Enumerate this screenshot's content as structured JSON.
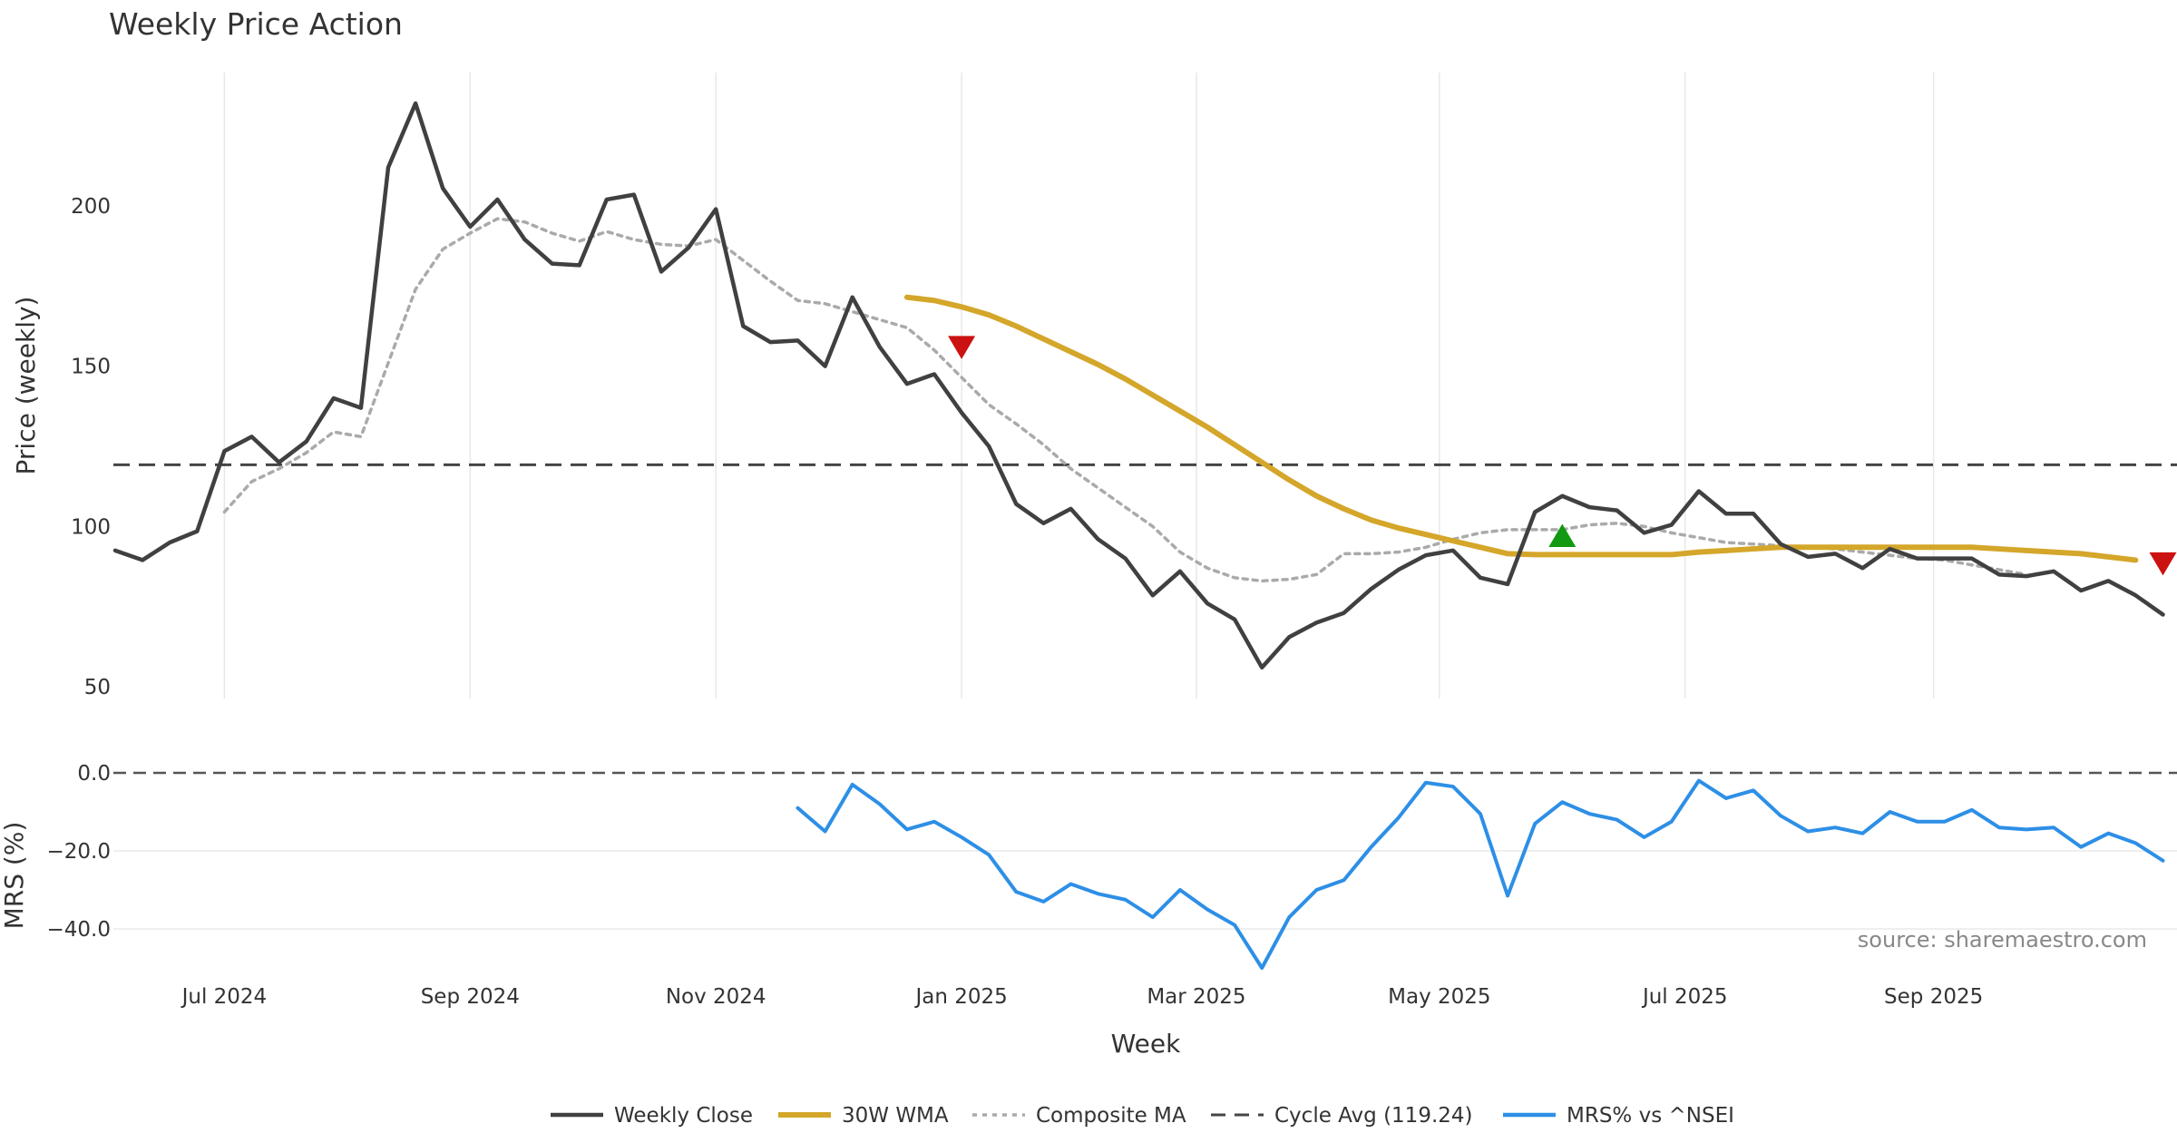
{
  "chart_data": [
    {
      "type": "line",
      "title": "Weekly Price Action",
      "ylabel": "Price (weekly)",
      "ylim": [
        42,
        238
      ],
      "yticks": [
        50,
        100,
        150,
        200
      ],
      "x_week_range": [
        0,
        78
      ],
      "series": [
        {
          "name": "Weekly Close",
          "color": "#404040",
          "start_week": 0,
          "values": [
            92.5,
            89.5,
            95,
            98.5,
            123.5,
            128,
            120,
            126.5,
            140,
            137,
            212,
            232,
            205.5,
            193.5,
            202,
            189.5,
            182,
            181.5,
            202,
            203.5,
            179.5,
            187,
            199,
            162.5,
            157.5,
            158,
            150,
            171.5,
            156,
            144.5,
            147.5,
            135.5,
            125,
            107,
            101,
            105.5,
            96,
            90,
            78.5,
            86,
            76,
            71,
            56,
            65.5,
            70,
            73,
            80.5,
            86.5,
            91,
            92.5,
            84,
            82,
            104.5,
            109.5,
            106,
            105,
            98,
            100.5,
            111,
            104,
            104,
            94.5,
            90.5,
            91.5,
            87,
            93,
            90,
            90,
            90,
            85,
            84.5,
            86,
            80,
            83,
            78.5,
            72.5
          ]
        },
        {
          "name": "30W WMA",
          "color": "#d4a62a",
          "start_week": 29,
          "values": [
            171.5,
            170.5,
            168.5,
            166,
            162.5,
            158.5,
            154.5,
            150.5,
            146,
            141,
            136,
            131,
            125.5,
            120,
            114.5,
            109.5,
            105.5,
            102,
            99.5,
            97.5,
            95.5,
            93.5,
            91.5,
            91.2,
            91.2,
            91.2,
            91.2,
            91.2,
            91.2,
            92,
            92.5,
            93,
            93.5,
            93.5,
            93.5,
            93.5,
            93.5,
            93.5,
            93.5,
            93.5,
            93,
            92.5,
            92,
            91.5,
            90.5,
            89.5
          ]
        },
        {
          "name": "Composite MA",
          "color": "#aaaaaa",
          "start_week": 4,
          "values": [
            104.5,
            114,
            118,
            123,
            129.5,
            128,
            151,
            174,
            186.5,
            191.5,
            196,
            195,
            191.5,
            189,
            192,
            189.5,
            188,
            187.5,
            189.5,
            183,
            176.5,
            170.5,
            169.5,
            167,
            164.5,
            162,
            155,
            146.5,
            138,
            132,
            125.5,
            118,
            112,
            106,
            100,
            92,
            87,
            84,
            83,
            83.5,
            85,
            91.5,
            91.5,
            92,
            93.5,
            96,
            98,
            99,
            99,
            99,
            100.5,
            101,
            100,
            98,
            96.5,
            95,
            94.5,
            94,
            93.5,
            93,
            92,
            91,
            90,
            89.5,
            88,
            86.5,
            85
          ]
        }
      ],
      "reference_line": {
        "name": "Cycle Avg (119.24)",
        "value": 119.24,
        "color": "#444444"
      },
      "signals": [
        {
          "type": "sell",
          "week": 31,
          "value": 157,
          "color": "#cc1111"
        },
        {
          "type": "buy",
          "week": 53,
          "value": 96,
          "color": "#119911"
        },
        {
          "type": "sell",
          "week": 75,
          "value": 89.5,
          "color": "#cc1111"
        }
      ]
    },
    {
      "type": "line",
      "xlabel": "Week",
      "ylabel": "MRS (%)",
      "ylim": [
        -52,
        0
      ],
      "yticks": [
        0,
        -20,
        -40
      ],
      "ytick_labels": [
        "0.0",
        "−20.0",
        "−40.0"
      ],
      "reference_line": {
        "value": 0,
        "color": "#555555"
      },
      "series": [
        {
          "name": "MRS% vs ^NSEI",
          "color": "#2d8fe6",
          "start_week": 25,
          "values": [
            -9,
            -15,
            -3,
            -8,
            -14.5,
            -12.5,
            -16.5,
            -21,
            -30.5,
            -33,
            -28.5,
            -31,
            -32.5,
            -37,
            -30,
            -35,
            -39,
            -50,
            -37,
            -30,
            -27.5,
            -19,
            -11.5,
            -2.5,
            -3.5,
            -10.5,
            -31.5,
            -13,
            -7.5,
            -10.5,
            -12,
            -16.5,
            -12.5,
            -2,
            -6.5,
            -4.5,
            -11,
            -15,
            -14,
            -15.5,
            -10,
            -12.5,
            -12.5,
            -9.5,
            -14,
            -14.5,
            -14,
            -19,
            -15.5,
            -18,
            -22.5
          ]
        }
      ]
    }
  ],
  "x_axis": {
    "label": "Week",
    "ticks": [
      {
        "label": "Jul 2024",
        "week": 4
      },
      {
        "label": "Sep 2024",
        "week": 13
      },
      {
        "label": "Nov 2024",
        "week": 22
      },
      {
        "label": "Jan 2025",
        "week": 31
      },
      {
        "label": "Mar 2025",
        "week": 39.6
      },
      {
        "label": "May 2025",
        "week": 48.5
      },
      {
        "label": "Jul 2025",
        "week": 57.5
      },
      {
        "label": "Sep 2025",
        "week": 66.6
      },
      {
        "label": "",
        "week": 75.6
      }
    ]
  },
  "legend": {
    "position": "bottom-center",
    "items": [
      {
        "label": "Weekly Close",
        "style": "solid",
        "color": "#404040"
      },
      {
        "label": "30W WMA",
        "style": "thick",
        "color": "#d4a62a"
      },
      {
        "label": "Composite MA",
        "style": "dotted",
        "color": "#aaaaaa"
      },
      {
        "label": "Cycle Avg (119.24)",
        "style": "dashed",
        "color": "#444444"
      },
      {
        "label": "MRS% vs ^NSEI",
        "style": "solid",
        "color": "#2d8fe6"
      }
    ]
  },
  "source_note": "source: sharemaestro.com"
}
